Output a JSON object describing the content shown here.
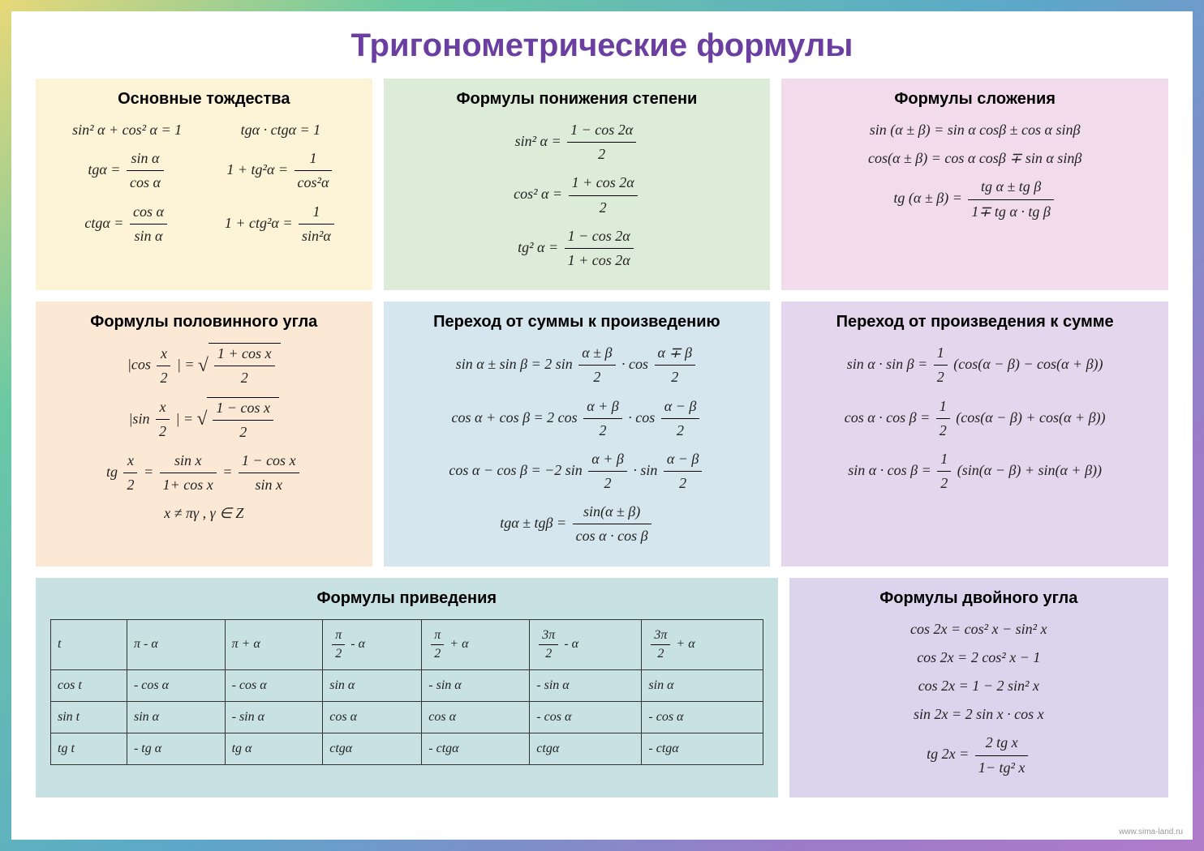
{
  "title": "Тригонометрические формулы",
  "watermark": "www.sima-land.ru",
  "cards": {
    "identities": {
      "bg": "#fdf4d7",
      "title": "Основные тождества",
      "f1a": "sin² α + cos² α = 1",
      "f1b": "tgα · ctgα = 1",
      "f2a_lhs": "tgα =",
      "f2a_num": "sin α",
      "f2a_den": "cos α",
      "f2b_lhs": "1 + tg²α =",
      "f2b_num": "1",
      "f2b_den": "cos²α",
      "f3a_lhs": "ctgα =",
      "f3a_num": "cos α",
      "f3a_den": "sin α",
      "f3b_lhs": "1 + ctg²α =",
      "f3b_num": "1",
      "f3b_den": "sin²α"
    },
    "power_reduction": {
      "bg": "#dcecd8",
      "title": "Формулы понижения степени",
      "f1_lhs": "sin² α =",
      "f1_num": "1 − cos 2α",
      "f1_den": "2",
      "f2_lhs": "cos² α =",
      "f2_num": "1 + cos 2α",
      "f2_den": "2",
      "f3_lhs": "tg² α =",
      "f3_num": "1 − cos 2α",
      "f3_den": "1 + cos 2α"
    },
    "addition": {
      "bg": "#f2dcec",
      "title": "Формулы сложения",
      "f1": "sin (α ± β) = sin α cosβ ± cos α sinβ",
      "f2": "cos(α ± β) = cos α cosβ ∓ sin α sinβ",
      "f3_lhs": "tg (α ± β) =",
      "f3_num": "tg α ± tg β",
      "f3_den": "1∓ tg α · tg β"
    },
    "half_angle": {
      "bg": "#fbe9d6",
      "title": "Формулы половинного угла",
      "f1_lhs_l": "|cos",
      "f1_lhs_num": "x",
      "f1_lhs_den": "2",
      "f1_lhs_r": "| =",
      "f1_sqrt_num": "1 + cos x",
      "f1_sqrt_den": "2",
      "f2_lhs_l": "|sin",
      "f2_sqrt_num": "1 − cos x",
      "f3_lhs": "tg",
      "f3_lhs_num": "x",
      "f3_lhs_den": "2",
      "f3_eq": "=",
      "f3_a_num": "sin x",
      "f3_a_den": "1+ cos x",
      "f3_b_num": "1 − cos x",
      "f3_b_den": "sin x",
      "f4": "x ≠ πγ , γ ∈ Z"
    },
    "sum_to_product": {
      "bg": "#d6e6ee",
      "title": "Переход от суммы к произведению",
      "f1_lhs": "sin α ± sin β = 2 sin",
      "f1_a_num": "α ± β",
      "f1_a_den": "2",
      "f1_mid": "· cos",
      "f1_b_num": "α ∓ β",
      "f1_b_den": "2",
      "f2_lhs": "cos α + cos β = 2 cos",
      "f2_a_num": "α + β",
      "f2_b_num": "α − β",
      "f3_lhs": "cos α − cos β = −2 sin",
      "f3_mid": "· sin",
      "f4_lhs": "tgα ± tgβ =",
      "f4_num": "sin(α ± β)",
      "f4_den": "cos α · cos β"
    },
    "product_to_sum": {
      "bg": "#e4d6ec",
      "title": "Переход от произведения к сумме",
      "f1_lhs": "sin α · sin β =",
      "half_num": "1",
      "half_den": "2",
      "f1_rhs": "(cos(α − β) − cos(α + β))",
      "f2_lhs": "cos α · cos β =",
      "f2_rhs": "(cos(α − β) + cos(α + β))",
      "f3_lhs": "sin α · cos β =",
      "f3_rhs": "(sin(α − β) + sin(α + β))"
    },
    "reduction": {
      "bg": "#c8e2e4",
      "title": "Формулы приведения",
      "headers": [
        "t",
        "π - α",
        "π + α",
        "π/2 - α",
        "π/2 + α",
        "3π/2 - α",
        "3π/2 + α"
      ],
      "rows": [
        [
          "cos t",
          "- cos α",
          "- cos α",
          "sin α",
          "- sin α",
          "- sin α",
          "sin α"
        ],
        [
          "sin t",
          "sin α",
          "- sin α",
          "cos α",
          "cos α",
          "- cos α",
          "- cos α"
        ],
        [
          "tg t",
          "- tg α",
          "tg α",
          "ctgα",
          "- ctgα",
          "ctgα",
          "- ctgα"
        ]
      ]
    },
    "double_angle": {
      "bg": "#dcd4ec",
      "title": "Формулы двойного угла",
      "f1": "cos 2x = cos² x − sin² x",
      "f2": "cos 2x = 2 cos² x − 1",
      "f3": "cos 2x = 1 − 2 sin² x",
      "f4": "sin 2x = 2 sin x · cos x",
      "f5_lhs": "tg 2x =",
      "f5_num": "2 tg x",
      "f5_den": "1− tg² x"
    }
  }
}
